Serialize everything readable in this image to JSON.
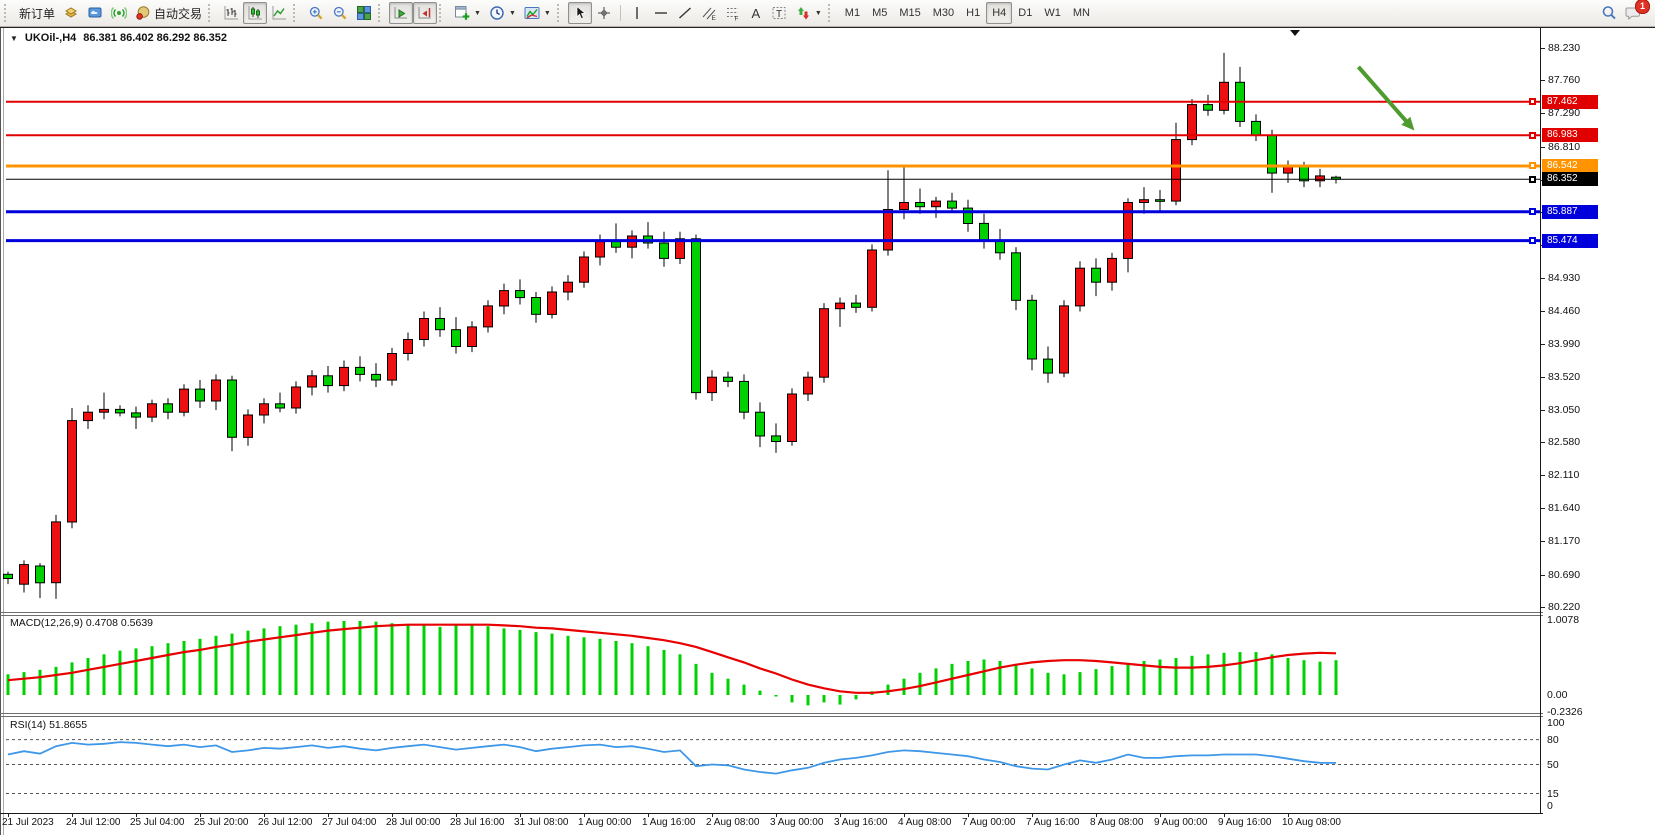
{
  "toolbar": {
    "new_order_label": "新订单",
    "autotrading_label": "自动交易",
    "timeframes": [
      "M1",
      "M5",
      "M15",
      "M30",
      "H1",
      "H4",
      "D1",
      "W1",
      "MN"
    ],
    "active_timeframe": "H4",
    "notification_count": "1"
  },
  "chart_header": {
    "symbol_period": "UKOil-,H4",
    "ohlc": "86.381 86.402 86.292 86.352"
  },
  "price_axis": {
    "ticks": [
      88.23,
      87.76,
      87.29,
      86.81,
      86.34,
      85.87,
      85.4,
      84.93,
      84.46,
      83.99,
      83.52,
      83.05,
      82.58,
      82.11,
      81.64,
      81.17,
      80.69,
      80.22
    ],
    "badges": [
      {
        "value": 87.462,
        "color": "#e00000"
      },
      {
        "value": 86.983,
        "color": "#e00000"
      },
      {
        "value": 86.542,
        "color": "#ff9400"
      },
      {
        "value": 86.352,
        "color": "#000000"
      },
      {
        "value": 85.887,
        "color": "#0000dd"
      },
      {
        "value": 85.474,
        "color": "#0000dd"
      }
    ]
  },
  "time_axis": {
    "labels": [
      "21 Jul 2023",
      "24 Jul 12:00",
      "25 Jul 04:00",
      "25 Jul 20:00",
      "26 Jul 12:00",
      "27 Jul 04:00",
      "28 Jul 00:00",
      "28 Jul 16:00",
      "31 Jul 08:00",
      "1 Aug 00:00",
      "1 Aug 16:00",
      "2 Aug 08:00",
      "3 Aug 00:00",
      "3 Aug 16:00",
      "4 Aug 08:00",
      "7 Aug 00:00",
      "7 Aug 16:00",
      "8 Aug 08:00",
      "9 Aug 00:00",
      "9 Aug 16:00",
      "10 Aug 08:00"
    ]
  },
  "indicators": {
    "macd": {
      "label": "MACD(12,26,9) 0.4708 0.5639",
      "axis_labels": [
        "1.0078",
        "0.00",
        "-0.2326"
      ]
    },
    "rsi": {
      "label": "RSI(14) 51.8655",
      "axis_labels": [
        "100",
        "80",
        "50",
        "15",
        "0"
      ]
    }
  },
  "chart_data": {
    "type": "candlestick",
    "symbol": "UKOil-",
    "period": "H4",
    "current_bar": {
      "open": 86.381,
      "high": 86.402,
      "low": 86.292,
      "close": 86.352
    },
    "up_color": "#ee1010",
    "down_color": "#00d000",
    "candles": [
      [
        80.7,
        80.74,
        80.56,
        80.64
      ],
      [
        80.56,
        80.9,
        80.44,
        80.84
      ],
      [
        80.82,
        80.86,
        80.36,
        80.58
      ],
      [
        80.58,
        81.55,
        80.35,
        81.45
      ],
      [
        81.45,
        83.08,
        81.36,
        82.9
      ],
      [
        82.9,
        83.12,
        82.78,
        83.02
      ],
      [
        83.02,
        83.3,
        82.92,
        83.06
      ],
      [
        83.06,
        83.12,
        82.96,
        83.01
      ],
      [
        83.01,
        83.1,
        82.78,
        82.95
      ],
      [
        82.95,
        83.2,
        82.88,
        83.14
      ],
      [
        83.14,
        83.22,
        82.92,
        83.02
      ],
      [
        83.02,
        83.42,
        82.96,
        83.35
      ],
      [
        83.35,
        83.48,
        83.08,
        83.18
      ],
      [
        83.18,
        83.56,
        83.05,
        83.48
      ],
      [
        83.48,
        83.54,
        82.46,
        82.66
      ],
      [
        82.66,
        83.06,
        82.54,
        82.98
      ],
      [
        82.98,
        83.22,
        82.86,
        83.14
      ],
      [
        83.14,
        83.3,
        83.02,
        83.08
      ],
      [
        83.08,
        83.46,
        83.0,
        83.38
      ],
      [
        83.38,
        83.62,
        83.26,
        83.54
      ],
      [
        83.54,
        83.68,
        83.3,
        83.4
      ],
      [
        83.4,
        83.76,
        83.32,
        83.66
      ],
      [
        83.66,
        83.82,
        83.46,
        83.56
      ],
      [
        83.56,
        83.72,
        83.38,
        83.48
      ],
      [
        83.48,
        83.94,
        83.4,
        83.86
      ],
      [
        83.86,
        84.16,
        83.76,
        84.06
      ],
      [
        84.06,
        84.46,
        83.96,
        84.36
      ],
      [
        84.36,
        84.52,
        84.1,
        84.2
      ],
      [
        84.2,
        84.38,
        83.86,
        83.96
      ],
      [
        83.96,
        84.32,
        83.88,
        84.24
      ],
      [
        84.24,
        84.62,
        84.16,
        84.54
      ],
      [
        84.54,
        84.86,
        84.42,
        84.76
      ],
      [
        84.76,
        84.92,
        84.56,
        84.66
      ],
      [
        84.66,
        84.74,
        84.3,
        84.42
      ],
      [
        84.42,
        84.82,
        84.36,
        84.74
      ],
      [
        84.74,
        84.98,
        84.62,
        84.88
      ],
      [
        84.88,
        85.32,
        84.8,
        85.24
      ],
      [
        85.24,
        85.56,
        85.12,
        85.46
      ],
      [
        85.46,
        85.72,
        85.3,
        85.38
      ],
      [
        85.38,
        85.62,
        85.22,
        85.54
      ],
      [
        85.54,
        85.74,
        85.36,
        85.44
      ],
      [
        85.44,
        85.6,
        85.1,
        85.22
      ],
      [
        85.22,
        85.6,
        85.14,
        85.5
      ],
      [
        85.5,
        85.56,
        83.2,
        83.3
      ],
      [
        83.3,
        83.62,
        83.18,
        83.52
      ],
      [
        83.52,
        83.6,
        83.38,
        83.46
      ],
      [
        83.46,
        83.56,
        82.92,
        83.02
      ],
      [
        83.02,
        83.16,
        82.52,
        82.68
      ],
      [
        82.68,
        82.86,
        82.44,
        82.6
      ],
      [
        82.6,
        83.36,
        82.54,
        83.28
      ],
      [
        83.28,
        83.6,
        83.18,
        83.52
      ],
      [
        83.52,
        84.58,
        83.44,
        84.5
      ],
      [
        84.5,
        84.66,
        84.24,
        84.58
      ],
      [
        84.58,
        84.7,
        84.44,
        84.52
      ],
      [
        84.52,
        85.42,
        84.46,
        85.34
      ],
      [
        85.34,
        86.48,
        85.26,
        85.92
      ],
      [
        85.92,
        86.52,
        85.78,
        86.02
      ],
      [
        86.02,
        86.22,
        85.86,
        85.96
      ],
      [
        85.96,
        86.1,
        85.8,
        86.04
      ],
      [
        86.04,
        86.16,
        85.88,
        85.94
      ],
      [
        85.94,
        86.06,
        85.6,
        85.72
      ],
      [
        85.72,
        85.86,
        85.36,
        85.48
      ],
      [
        85.48,
        85.64,
        85.2,
        85.3
      ],
      [
        85.3,
        85.38,
        84.48,
        84.62
      ],
      [
        84.62,
        84.7,
        83.62,
        83.78
      ],
      [
        83.78,
        83.96,
        83.44,
        83.58
      ],
      [
        83.58,
        84.62,
        83.52,
        84.54
      ],
      [
        84.54,
        85.18,
        84.46,
        85.08
      ],
      [
        85.08,
        85.22,
        84.68,
        84.88
      ],
      [
        84.88,
        85.3,
        84.76,
        85.22
      ],
      [
        85.22,
        86.08,
        85.02,
        86.02
      ],
      [
        86.02,
        86.24,
        85.86,
        86.06
      ],
      [
        86.06,
        86.2,
        85.9,
        86.04
      ],
      [
        86.04,
        87.16,
        85.98,
        86.92
      ],
      [
        86.92,
        87.5,
        86.84,
        87.42
      ],
      [
        87.42,
        87.56,
        87.26,
        87.34
      ],
      [
        87.34,
        88.16,
        87.28,
        87.74
      ],
      [
        87.74,
        87.96,
        87.1,
        87.18
      ],
      [
        87.18,
        87.28,
        86.9,
        86.98
      ],
      [
        86.98,
        87.06,
        86.16,
        86.44
      ],
      [
        86.44,
        86.62,
        86.3,
        86.54
      ],
      [
        86.54,
        86.6,
        86.24,
        86.33
      ],
      [
        86.33,
        86.5,
        86.24,
        86.4
      ],
      [
        86.381,
        86.402,
        86.292,
        86.352
      ]
    ],
    "hlines": [
      {
        "price": 87.462,
        "color": "#e00000",
        "width": 2
      },
      {
        "price": 86.983,
        "color": "#e00000",
        "width": 2
      },
      {
        "price": 86.542,
        "color": "#ff9400",
        "width": 3
      },
      {
        "price": 86.352,
        "color": "#000000",
        "width": 1
      },
      {
        "price": 85.887,
        "color": "#0000dd",
        "width": 3
      },
      {
        "price": 85.474,
        "color": "#0000dd",
        "width": 3
      }
    ],
    "arrow_annotation": {
      "x1_bar": 84.4,
      "price1": 87.96,
      "x2_bar": 87.9,
      "price2": 87.05,
      "color": "#4e9b2f"
    },
    "macd": {
      "histogram_color": "#00d000",
      "signal_color": "#e80000",
      "scale_max": 1.0078,
      "scale_min": -0.2326,
      "values": [
        0.28,
        0.31,
        0.34,
        0.38,
        0.44,
        0.5,
        0.55,
        0.6,
        0.63,
        0.66,
        0.7,
        0.73,
        0.76,
        0.8,
        0.83,
        0.87,
        0.9,
        0.93,
        0.95,
        0.97,
        0.99,
        1.0,
        1.0,
        0.99,
        0.97,
        0.95,
        0.94,
        0.92,
        0.94,
        0.96,
        0.93,
        0.9,
        0.88,
        0.85,
        0.83,
        0.8,
        0.78,
        0.76,
        0.73,
        0.7,
        0.66,
        0.61,
        0.55,
        0.42,
        0.3,
        0.22,
        0.14,
        0.06,
        -0.02,
        -0.1,
        -0.14,
        -0.1,
        -0.13,
        -0.06,
        0.05,
        0.14,
        0.22,
        0.3,
        0.36,
        0.42,
        0.46,
        0.48,
        0.46,
        0.42,
        0.36,
        0.3,
        0.28,
        0.31,
        0.35,
        0.39,
        0.43,
        0.46,
        0.48,
        0.5,
        0.53,
        0.55,
        0.57,
        0.58,
        0.58,
        0.55,
        0.5,
        0.47,
        0.45,
        0.4708
      ],
      "signal": [
        0.2,
        0.22,
        0.24,
        0.27,
        0.3,
        0.34,
        0.38,
        0.42,
        0.46,
        0.5,
        0.54,
        0.58,
        0.61,
        0.65,
        0.68,
        0.72,
        0.75,
        0.78,
        0.81,
        0.84,
        0.87,
        0.89,
        0.91,
        0.93,
        0.94,
        0.95,
        0.95,
        0.95,
        0.95,
        0.95,
        0.95,
        0.94,
        0.93,
        0.91,
        0.9,
        0.88,
        0.86,
        0.84,
        0.82,
        0.8,
        0.77,
        0.74,
        0.7,
        0.65,
        0.58,
        0.51,
        0.44,
        0.36,
        0.29,
        0.21,
        0.14,
        0.09,
        0.05,
        0.03,
        0.03,
        0.05,
        0.08,
        0.12,
        0.17,
        0.22,
        0.27,
        0.32,
        0.37,
        0.41,
        0.44,
        0.46,
        0.47,
        0.47,
        0.46,
        0.44,
        0.42,
        0.4,
        0.38,
        0.37,
        0.37,
        0.38,
        0.4,
        0.43,
        0.47,
        0.51,
        0.54,
        0.56,
        0.57,
        0.5639
      ]
    },
    "rsi": {
      "line_color": "#3e97e8",
      "levels": [
        80,
        50,
        15
      ],
      "values": [
        62,
        66,
        63,
        72,
        76,
        74,
        75,
        77,
        76,
        74,
        72,
        74,
        71,
        73,
        65,
        67,
        70,
        69,
        71,
        73,
        70,
        72,
        69,
        67,
        70,
        72,
        74,
        71,
        68,
        70,
        72,
        74,
        71,
        66,
        69,
        71,
        73,
        74,
        71,
        72,
        69,
        65,
        67,
        48,
        50,
        49,
        44,
        41,
        39,
        43,
        46,
        52,
        56,
        58,
        61,
        65,
        67,
        66,
        64,
        62,
        60,
        56,
        53,
        48,
        45,
        44,
        50,
        55,
        52,
        56,
        62,
        58,
        58,
        60,
        61,
        61,
        62,
        62,
        62,
        60,
        57,
        54,
        52,
        51.87
      ]
    }
  }
}
